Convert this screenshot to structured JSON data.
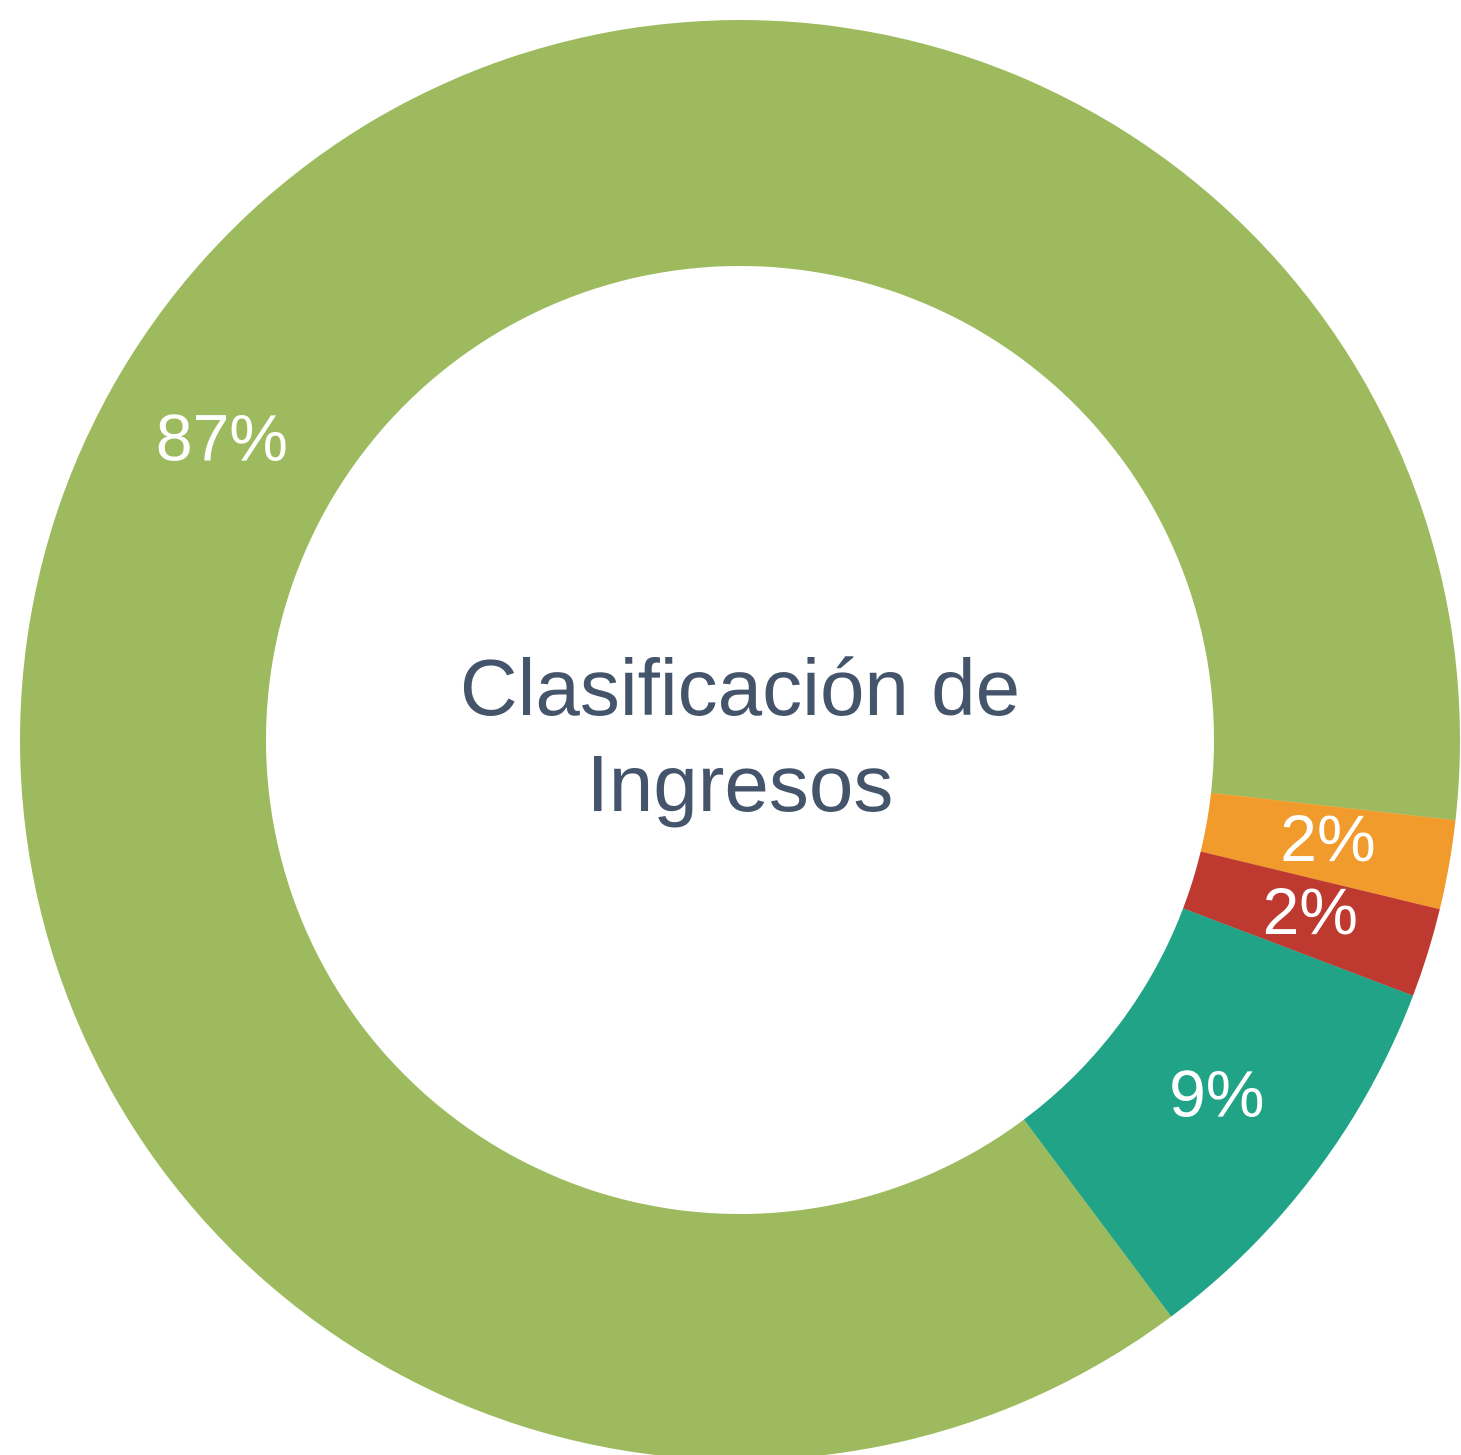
{
  "chart_data": {
    "type": "donut",
    "title": "Clasificación de Ingresos",
    "values": [
      87,
      2,
      2,
      9
    ],
    "value_labels": [
      "87%",
      "2%",
      "2%",
      "9%"
    ],
    "colors": [
      "#9dbb5e",
      "#f19b2c",
      "#be3a30",
      "#20a386"
    ]
  }
}
